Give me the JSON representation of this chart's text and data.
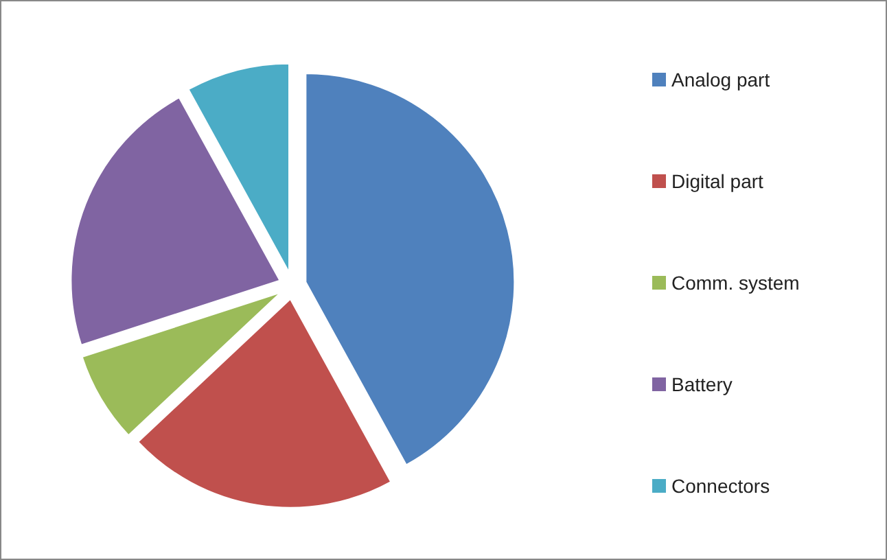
{
  "chart_data": {
    "type": "pie",
    "categories": [
      "Analog part",
      "Digital part",
      "Comm. system",
      "Battery",
      "Connectors"
    ],
    "values": [
      42,
      21,
      7,
      22,
      8
    ],
    "colors": [
      "#4f81bd",
      "#c0504d",
      "#9bbb59",
      "#8064a2",
      "#4bacc6"
    ],
    "legend": "right"
  }
}
